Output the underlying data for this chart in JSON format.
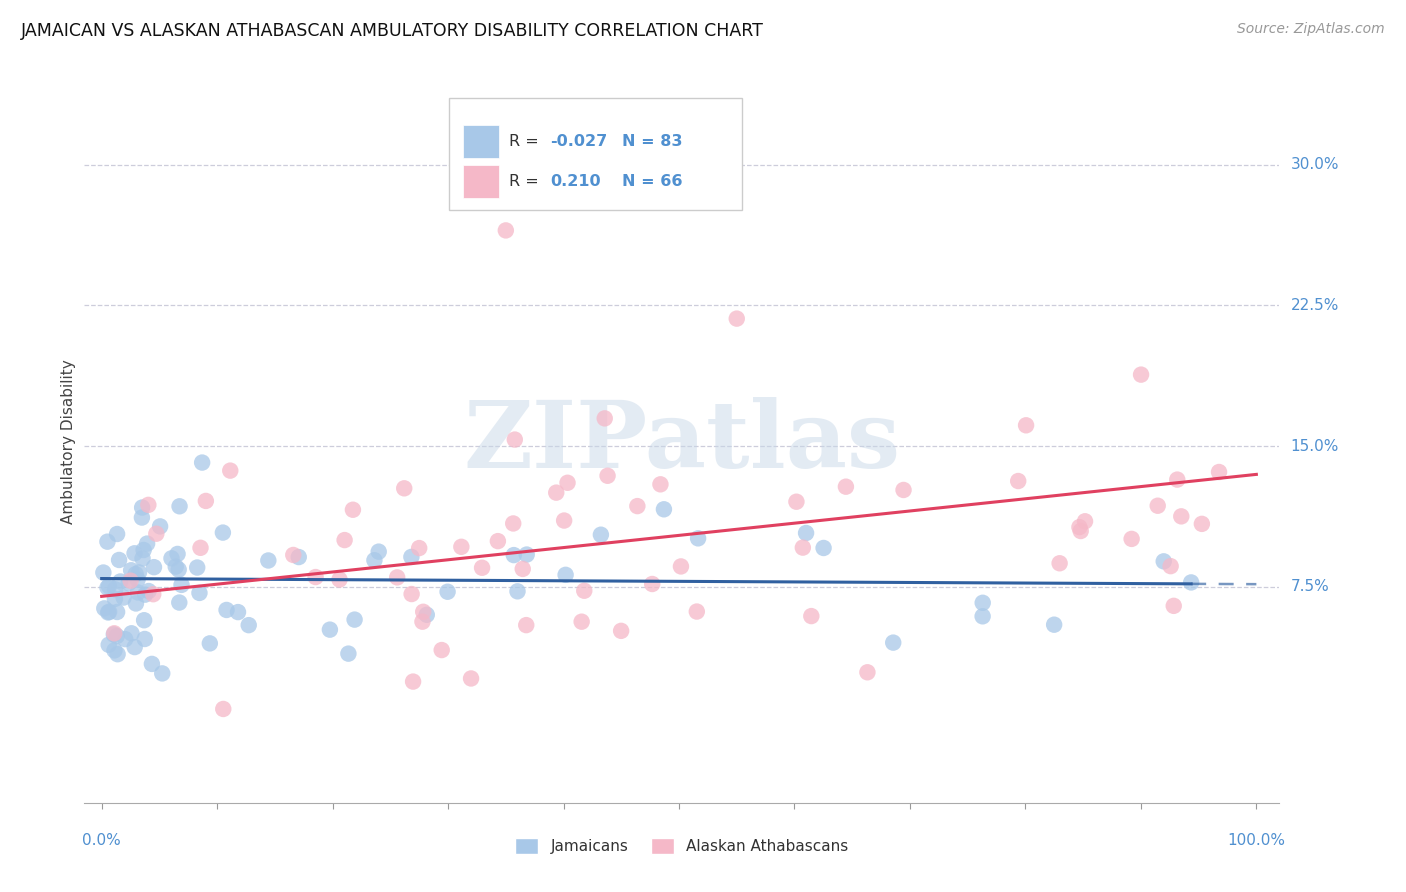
{
  "title": "JAMAICAN VS ALASKAN ATHABASCAN AMBULATORY DISABILITY CORRELATION CHART",
  "source": "Source: ZipAtlas.com",
  "ylabel": "Ambulatory Disability",
  "blue_R": -0.027,
  "blue_N": 83,
  "pink_R": 0.21,
  "pink_N": 66,
  "blue_color": "#a8c8e8",
  "pink_color": "#f5b8c8",
  "blue_line_color": "#3060a0",
  "pink_line_color": "#e04060",
  "legend_blue_label": "Jamaicans",
  "legend_pink_label": "Alaskan Athabascans",
  "watermark_text": "ZIPatlas",
  "background_color": "#ffffff",
  "grid_color": "#c8c8d8",
  "axis_label_color": "#5090d0",
  "title_fontsize": 12.5,
  "source_fontsize": 10,
  "ytick_vals": [
    0.075,
    0.15,
    0.225,
    0.3
  ],
  "ytick_labels": [
    "7.5%",
    "15.0%",
    "22.5%",
    "30.0%"
  ],
  "xlim": [
    -0.015,
    1.02
  ],
  "ylim": [
    -0.04,
    0.345
  ]
}
